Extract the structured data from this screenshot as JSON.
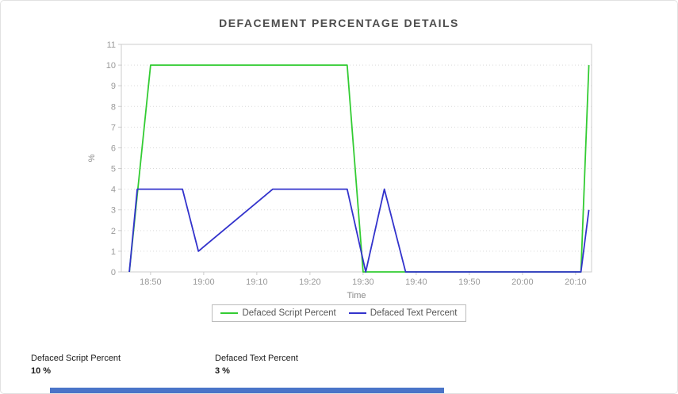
{
  "chart_data": {
    "type": "line",
    "title": "DEFACEMENT PERCENTAGE DETAILS",
    "xlabel": "Time",
    "ylabel": "%",
    "ylim": [
      0,
      11
    ],
    "y_ticks": [
      0,
      1,
      2,
      3,
      4,
      5,
      6,
      7,
      8,
      9,
      10,
      11
    ],
    "xlim_minutes": [
      1124.5,
      1213
    ],
    "x_ticks": [
      {
        "label": "18:50",
        "min": 1130
      },
      {
        "label": "19:00",
        "min": 1140
      },
      {
        "label": "19:10",
        "min": 1150
      },
      {
        "label": "19:20",
        "min": 1160
      },
      {
        "label": "19:30",
        "min": 1170
      },
      {
        "label": "19:40",
        "min": 1180
      },
      {
        "label": "19:50",
        "min": 1190
      },
      {
        "label": "20:00",
        "min": 1200
      },
      {
        "label": "20:10",
        "min": 1210
      }
    ],
    "grid": "horizontal-dotted",
    "legend_position": "bottom",
    "series": [
      {
        "name": "Defaced Script Percent",
        "color": "#33cc33",
        "points": [
          [
            1126,
            0
          ],
          [
            1130,
            10
          ],
          [
            1167,
            10
          ],
          [
            1170,
            0
          ],
          [
            1211,
            0
          ],
          [
            1212.5,
            10
          ]
        ]
      },
      {
        "name": "Defaced Text Percent",
        "color": "#3333cc",
        "points": [
          [
            1126,
            0
          ],
          [
            1127.5,
            4
          ],
          [
            1136,
            4
          ],
          [
            1139,
            1
          ],
          [
            1153,
            4
          ],
          [
            1167,
            4
          ],
          [
            1170.5,
            0
          ],
          [
            1174,
            4
          ],
          [
            1178,
            0
          ],
          [
            1211,
            0
          ],
          [
            1212.5,
            3
          ]
        ]
      }
    ]
  },
  "axis_style": {
    "tick_label_color": "#999999",
    "axis_label_color": "#888888",
    "axis_line_color": "#cccccc",
    "grid_color": "#d9d9d9"
  },
  "stats": [
    {
      "label": "Defaced Script Percent",
      "value": "10 %"
    },
    {
      "label": "Defaced Text Percent",
      "value": "3 %"
    }
  ],
  "footer_bar": {
    "color": "#4a74c8"
  }
}
